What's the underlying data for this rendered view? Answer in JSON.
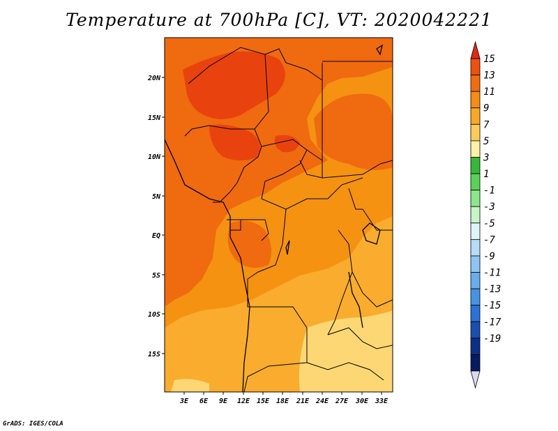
{
  "title": "Temperature at 700hPa [C], VT: 2020042221",
  "credit": "GrADS: IGES/COLA",
  "map": {
    "lon_ticks": [
      "3E",
      "6E",
      "9E",
      "12E",
      "15E",
      "18E",
      "21E",
      "24E",
      "27E",
      "30E",
      "33E"
    ],
    "lat_ticks": [
      "20N",
      "15N",
      "10N",
      "5N",
      "EQ",
      "5S",
      "10S",
      "15S"
    ]
  },
  "colorbar": {
    "labels": [
      "15",
      "13",
      "11",
      "9",
      "7",
      "5",
      "3",
      "1",
      "-1",
      "-3",
      "-5",
      "-7",
      "-9",
      "-11",
      "-13",
      "-15",
      "-17",
      "-19"
    ],
    "colors": [
      "#e02a14",
      "#ee5010",
      "#f26c12",
      "#f58c14",
      "#f9a828",
      "#fccc5a",
      "#fdf1a8",
      "#37b83a",
      "#5bd15a",
      "#8ce68a",
      "#c8f4c6",
      "#def3fa",
      "#b7dcf5",
      "#8fc5f0",
      "#69adea",
      "#4693e4",
      "#2a72d6",
      "#1a4fb0",
      "#0c2f88",
      "#061b60",
      "#d9d9f0"
    ]
  },
  "legend_colors": {
    "above_13": "#e8420f",
    "c11_13": "#f06a10",
    "c9_11": "#f59212",
    "c7_9": "#f9ac2e",
    "c5_7": "#fdd774"
  }
}
